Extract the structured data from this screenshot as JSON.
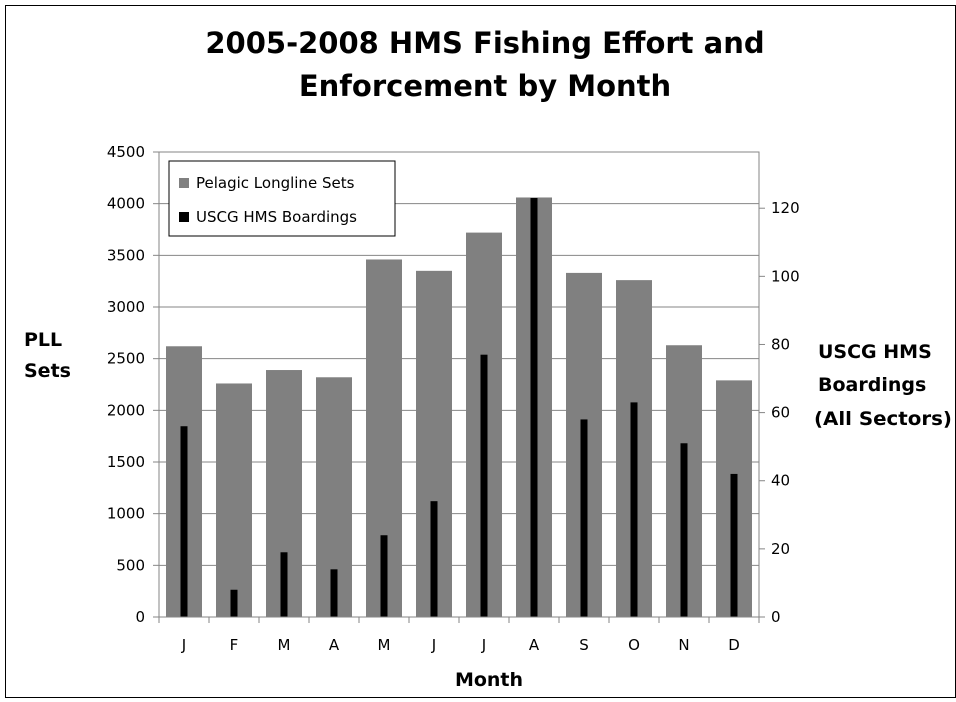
{
  "chart_data": {
    "type": "bar",
    "title_line1": "2005-2008 HMS Fishing Effort and",
    "title_line2": "Enforcement by Month",
    "xlabel": "Month",
    "ylabel_line1": "PLL",
    "ylabel_line2": "Sets",
    "y2label_line1": "USCG HMS",
    "y2label_line2": "Boardings",
    "y2label_line3": "(All Sectors)",
    "categories": [
      "J",
      "F",
      "M",
      "A",
      "M",
      "J",
      "J",
      "A",
      "S",
      "O",
      "N",
      "D"
    ],
    "y_ticks": [
      0,
      500,
      1000,
      1500,
      2000,
      2500,
      3000,
      3500,
      4000,
      4500
    ],
    "y2_ticks": [
      0,
      20,
      40,
      60,
      80,
      100,
      120
    ],
    "ylim": [
      0,
      4500
    ],
    "y2lim": [
      0,
      136.5
    ],
    "legend_position": "top-left",
    "grid": true,
    "series": [
      {
        "name": "Pelagic Longline Sets",
        "axis": "left",
        "color": "#808080",
        "values": [
          2620,
          2260,
          2390,
          2320,
          3460,
          3350,
          3720,
          4060,
          3330,
          3260,
          2630,
          2290
        ]
      },
      {
        "name": "USCG HMS Boardings",
        "axis": "right",
        "color": "#000000",
        "values": [
          56,
          8,
          19,
          14,
          24,
          34,
          77,
          123,
          58,
          63,
          51,
          42
        ]
      }
    ]
  }
}
